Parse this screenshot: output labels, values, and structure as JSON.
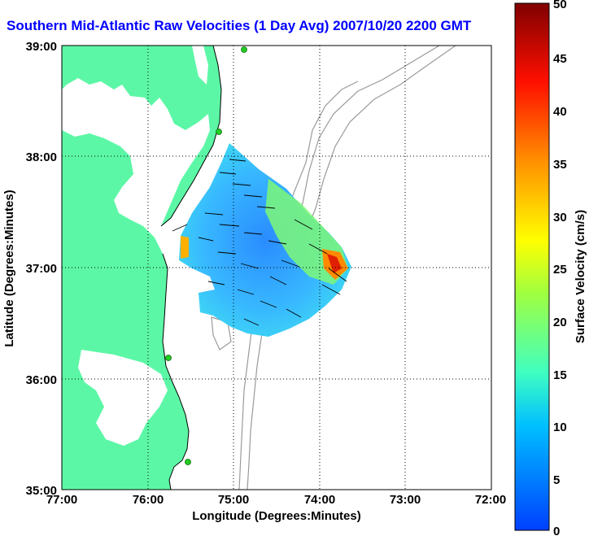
{
  "title": "Southern Mid-Atlantic Raw Velocities (1 Day Avg) 2007/10/20 2200 GMT",
  "x_axis": {
    "label": "Longitude (Degrees:Minutes)",
    "ticks": [
      "77:00",
      "76:00",
      "75:00",
      "74:00",
      "73:00",
      "72:00"
    ]
  },
  "y_axis": {
    "label": "Latitude (Degrees:Minutes)",
    "ticks": [
      "39:00",
      "38:00",
      "37:00",
      "36:00",
      "35:00"
    ]
  },
  "colorbar": {
    "label": "Surface Velocity (cm/s)",
    "ticks": [
      "50",
      "45",
      "40",
      "35",
      "30",
      "25",
      "20",
      "15",
      "10",
      "5",
      "0"
    ],
    "min": 0,
    "max": 50
  },
  "colors": {
    "land": "#5cf7a6",
    "title": "#0000ff",
    "station": "#22cc22"
  }
}
